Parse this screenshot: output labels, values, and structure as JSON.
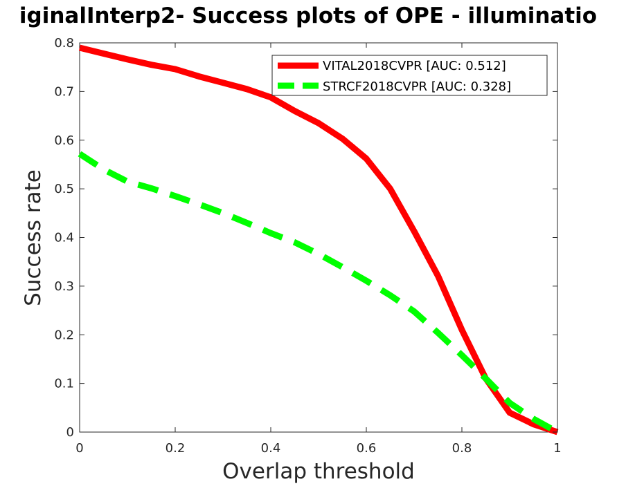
{
  "chart_data": {
    "type": "line",
    "title": "iginalInterp2- Success plots of OPE - illuminatio",
    "xlabel": "Overlap threshold",
    "ylabel": "Success rate",
    "xlim": [
      0,
      1
    ],
    "ylim": [
      0,
      0.8
    ],
    "xticks": [
      "0",
      "0.2",
      "0.4",
      "0.6",
      "0.8",
      "1"
    ],
    "yticks": [
      "0",
      "0.1",
      "0.2",
      "0.3",
      "0.4",
      "0.5",
      "0.6",
      "0.7",
      "0.8"
    ],
    "grid": false,
    "legend_position": "top-right",
    "x": [
      0,
      0.05,
      0.1,
      0.15,
      0.2,
      0.25,
      0.3,
      0.35,
      0.4,
      0.45,
      0.5,
      0.55,
      0.6,
      0.65,
      0.7,
      0.75,
      0.8,
      0.85,
      0.9,
      0.95,
      1.0
    ],
    "series": [
      {
        "name": "VITAL2018CVPR [AUC: 0.512]",
        "color": "#ff0000",
        "style": "solid",
        "values": [
          0.79,
          0.778,
          0.766,
          0.755,
          0.746,
          0.731,
          0.718,
          0.705,
          0.688,
          0.66,
          0.635,
          0.603,
          0.562,
          0.5,
          0.413,
          0.321,
          0.21,
          0.11,
          0.04,
          0.016,
          0.0
        ]
      },
      {
        "name": "STRCF2018CVPR [AUC: 0.328]",
        "color": "#00ff00",
        "style": "dashed",
        "values": [
          0.572,
          0.54,
          0.515,
          0.501,
          0.485,
          0.468,
          0.45,
          0.43,
          0.409,
          0.39,
          0.366,
          0.339,
          0.311,
          0.281,
          0.248,
          0.204,
          0.158,
          0.11,
          0.06,
          0.027,
          0.0
        ]
      }
    ]
  }
}
